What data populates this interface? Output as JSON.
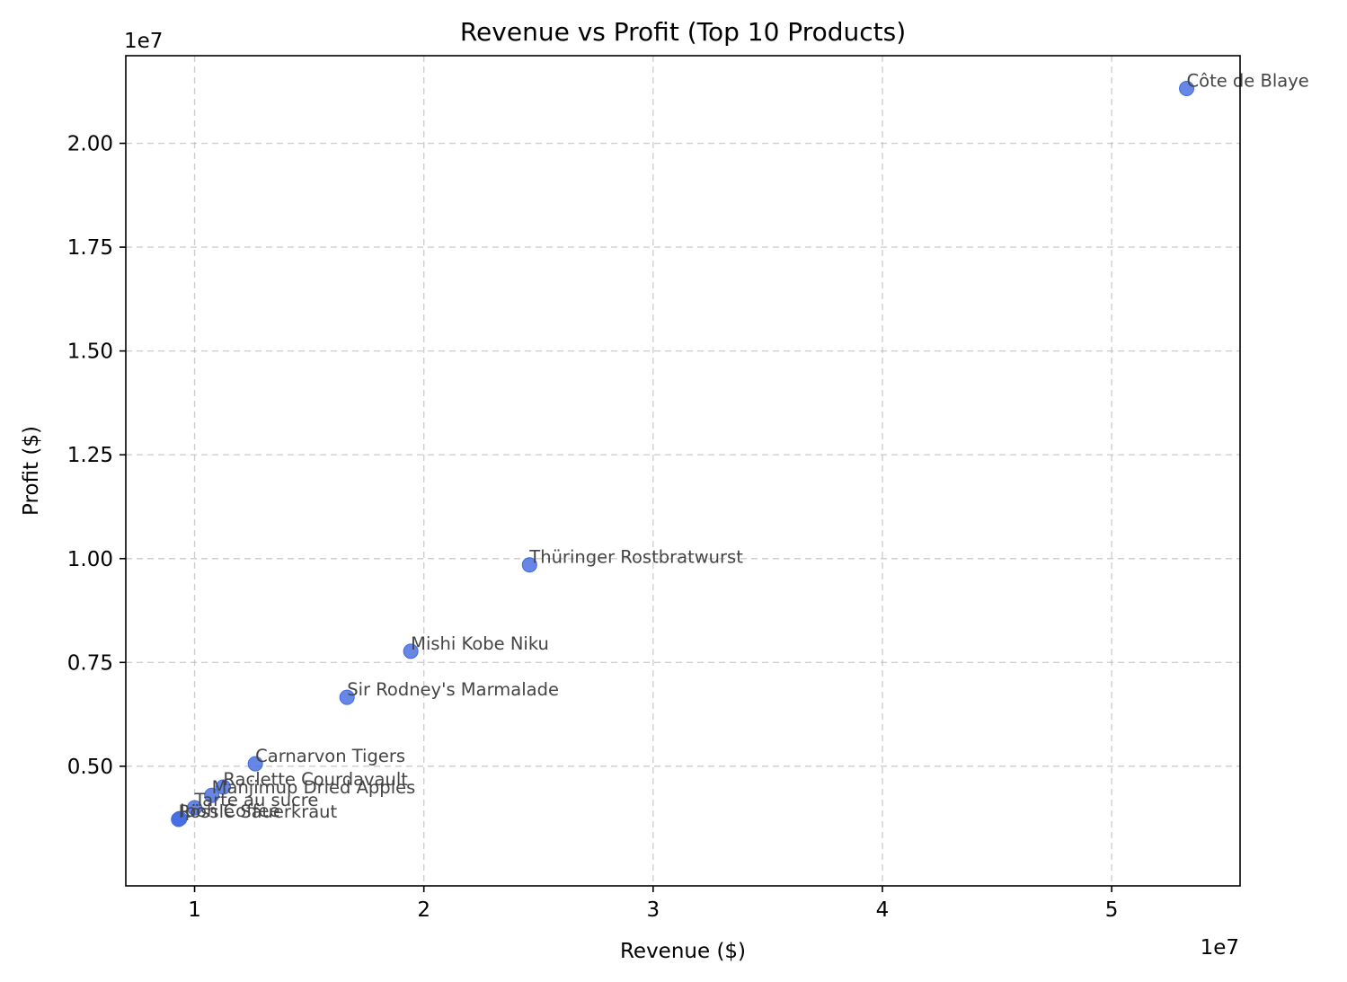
{
  "chart_data": {
    "type": "scatter",
    "title": "Revenue vs Profit (Top 10 Products)",
    "xlabel": "Revenue ($)",
    "ylabel": "Profit ($)",
    "x_offset_label": "1e7",
    "y_offset_label": "1e7",
    "xlim": [
      0.07,
      0.556
    ],
    "ylim": [
      0.0212,
      0.2211
    ],
    "x_ticks": [
      0.1,
      0.2,
      0.3,
      0.4,
      0.5
    ],
    "x_tick_labels": [
      "1",
      "2",
      "3",
      "4",
      "5"
    ],
    "y_ticks": [
      0.05,
      0.075,
      0.1,
      0.125,
      0.15,
      0.175,
      0.2
    ],
    "y_tick_labels": [
      "0.50",
      "0.75",
      "1.00",
      "1.25",
      "1.50",
      "1.75",
      "2.00"
    ],
    "grid": true,
    "marker_color": "#4169E1",
    "series": [
      {
        "points": [
          {
            "label": "Côte de Blaye",
            "x": 0.5327,
            "y": 0.2132
          },
          {
            "label": "Thüringer Rostbratwurst",
            "x": 0.2461,
            "y": 0.0985
          },
          {
            "label": "Mishi Kobe Niku",
            "x": 0.1943,
            "y": 0.0777
          },
          {
            "label": "Sir Rodney's Marmalade",
            "x": 0.1665,
            "y": 0.0666
          },
          {
            "label": "Carnarvon Tigers",
            "x": 0.1265,
            "y": 0.0506
          },
          {
            "label": "Raclette Courdavault",
            "x": 0.1125,
            "y": 0.045
          },
          {
            "label": "Manjimup Dried Apples",
            "x": 0.1075,
            "y": 0.043
          },
          {
            "label": "Tarte au sucre",
            "x": 0.1,
            "y": 0.04
          },
          {
            "label": "Ipoh Coffee",
            "x": 0.0935,
            "y": 0.0374
          },
          {
            "label": "Rössle Sauerkraut",
            "x": 0.093,
            "y": 0.0372
          }
        ]
      }
    ]
  }
}
